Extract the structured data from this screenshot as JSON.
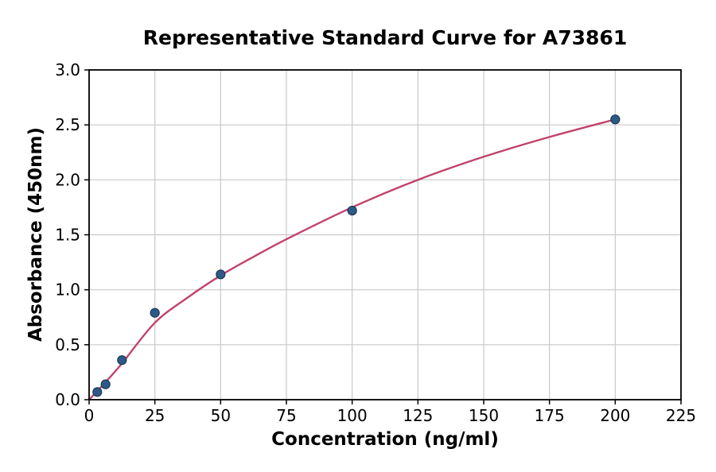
{
  "figure": {
    "background": "#ffffff"
  },
  "chart_data": {
    "type": "scatter",
    "title": "Representative Standard Curve for A73861",
    "xlabel": "Concentration (ng/ml)",
    "ylabel": "Absorbance (450nm)",
    "xlim": [
      0,
      225
    ],
    "ylim": [
      0.0,
      3.0
    ],
    "grid": true,
    "legend": "none",
    "x_ticks": [
      0,
      25,
      50,
      75,
      100,
      125,
      150,
      175,
      200,
      225
    ],
    "x_tick_labels": [
      "0",
      "25",
      "50",
      "75",
      "100",
      "125",
      "150",
      "175",
      "200",
      "225"
    ],
    "y_ticks": [
      0.0,
      0.5,
      1.0,
      1.5,
      2.0,
      2.5,
      3.0
    ],
    "y_tick_labels": [
      "0.0",
      "0.5",
      "1.0",
      "1.5",
      "2.0",
      "2.5",
      "3.0"
    ],
    "points": [
      {
        "x": 3.125,
        "y": 0.07
      },
      {
        "x": 6.25,
        "y": 0.14
      },
      {
        "x": 12.5,
        "y": 0.36
      },
      {
        "x": 25,
        "y": 0.79
      },
      {
        "x": 50,
        "y": 1.14
      },
      {
        "x": 100,
        "y": 1.72
      },
      {
        "x": 200,
        "y": 2.55
      }
    ],
    "fit_curve": [
      [
        0,
        0.0
      ],
      [
        3.125,
        0.08
      ],
      [
        6.25,
        0.16
      ],
      [
        12.5,
        0.33
      ],
      [
        25,
        0.7
      ],
      [
        37.5,
        0.93
      ],
      [
        50,
        1.13
      ],
      [
        62.5,
        1.3
      ],
      [
        75,
        1.46
      ],
      [
        100,
        1.75
      ],
      [
        125,
        2.0
      ],
      [
        150,
        2.21
      ],
      [
        175,
        2.39
      ],
      [
        200,
        2.55
      ]
    ],
    "colors": {
      "marker_fill": "#2d5986",
      "marker_edge": "#16324f",
      "fit_line": "#c2436a",
      "grid_line": "#c8c8c8",
      "spine": "#000000",
      "tick": "#000000"
    }
  }
}
